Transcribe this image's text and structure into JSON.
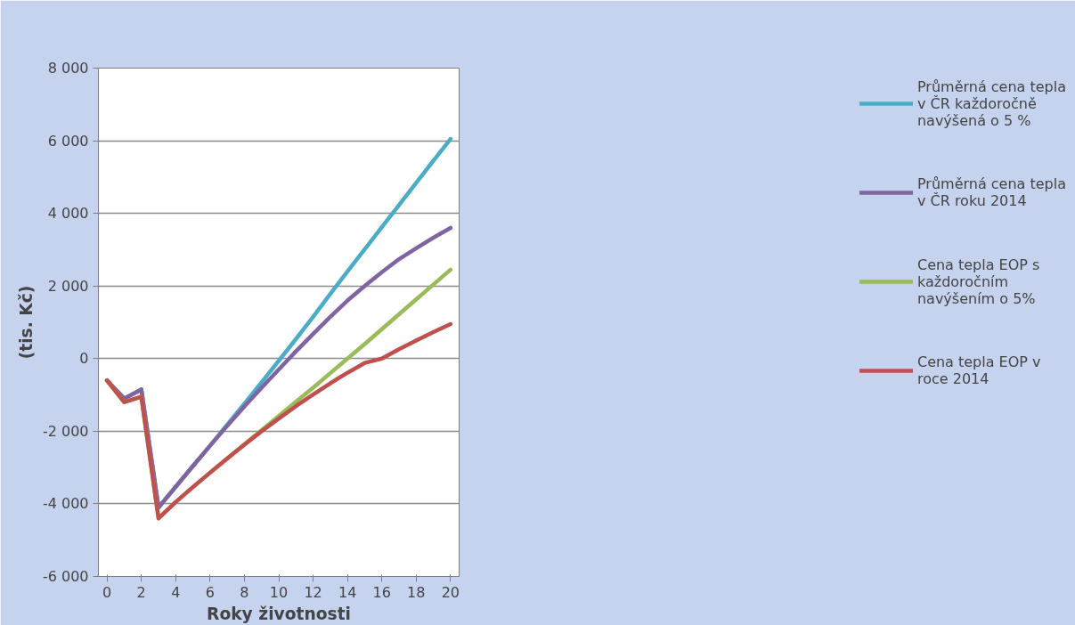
{
  "chart_data": {
    "type": "line",
    "xlabel": "Roky životnosti",
    "ylabel": "(tis. Kč)",
    "x": [
      0,
      1,
      2,
      3,
      4,
      5,
      6,
      7,
      8,
      9,
      10,
      11,
      12,
      13,
      14,
      15,
      16,
      17,
      18,
      19,
      20
    ],
    "xlim": [
      -0.5,
      20.5
    ],
    "xticks": [
      0,
      2,
      4,
      6,
      8,
      10,
      12,
      14,
      16,
      18,
      20
    ],
    "ylim": [
      -6000,
      8000
    ],
    "yticks": [
      {
        "value": -6000,
        "label": "-6 000"
      },
      {
        "value": -4000,
        "label": "-4 000"
      },
      {
        "value": -2000,
        "label": "-2 000"
      },
      0,
      {
        "value": 2000,
        "label": "2 000"
      },
      {
        "value": 4000,
        "label": "4 000"
      },
      {
        "value": 6000,
        "label": "6 000"
      },
      {
        "value": 8000,
        "label": "8 000"
      }
    ],
    "grid": "y",
    "legend": "right",
    "marker": "none",
    "line_style": "solid",
    "series": [
      {
        "name": "Průměrná cena tepla v ČR každoročně navýšená o 5 %",
        "color": "#4bacc6",
        "values": [
          -600,
          -1100,
          -850,
          -4100,
          -3530,
          -2960,
          -2400,
          -1820,
          -1240,
          -650,
          -60,
          540,
          1150,
          1780,
          2400,
          3010,
          3620,
          4230,
          4840,
          5450,
          6050
        ]
      },
      {
        "name": "Průměrná cena tepla v ČR roku 2014",
        "color": "#8064a2",
        "values": [
          -600,
          -1100,
          -850,
          -4100,
          -3530,
          -2960,
          -2400,
          -1850,
          -1320,
          -800,
          -300,
          200,
          680,
          1150,
          1600,
          2000,
          2380,
          2740,
          3040,
          3330,
          3600
        ]
      },
      {
        "name": "Cena tepla EOP s každoročním navýšením o 5%",
        "color": "#9bbb59",
        "values": [
          -600,
          -1200,
          -1050,
          -4400,
          -3950,
          -3540,
          -3140,
          -2750,
          -2360,
          -1970,
          -1580,
          -1190,
          -800,
          -400,
          0,
          400,
          810,
          1220,
          1630,
          2040,
          2450
        ]
      },
      {
        "name": "Cena tepla EOP v roce 2014",
        "color": "#c0504d",
        "values": [
          -600,
          -1200,
          -1050,
          -4400,
          -3950,
          -3540,
          -3140,
          -2750,
          -2370,
          -2000,
          -1650,
          -1310,
          -990,
          -680,
          -390,
          -120,
          0,
          260,
          500,
          730,
          950
        ]
      }
    ]
  }
}
